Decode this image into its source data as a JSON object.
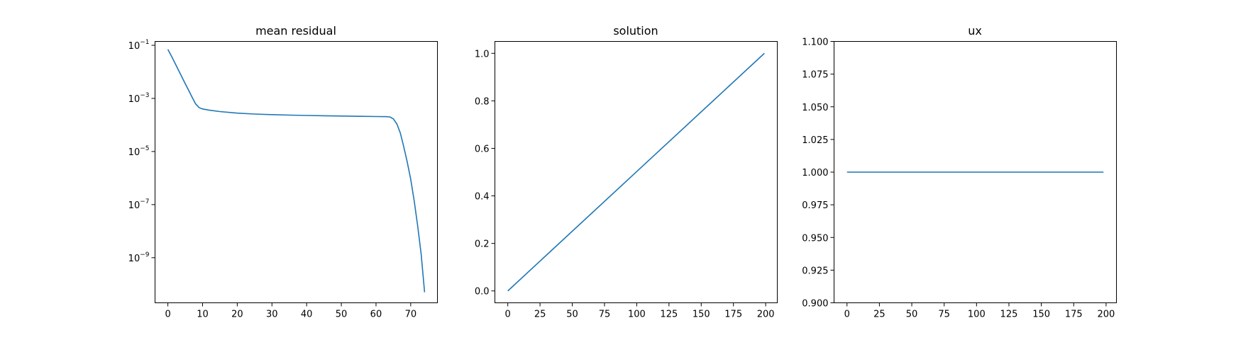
{
  "colors": {
    "series": "#1f77b4",
    "axis": "#000000",
    "background": "#ffffff"
  },
  "chart_data": [
    {
      "type": "line",
      "title": "mean residual",
      "xlabel": "",
      "ylabel": "",
      "yscale": "log",
      "grid": false,
      "xlim": [
        -3.7,
        77.7
      ],
      "ylim": [
        2e-11,
        0.14
      ],
      "xticks": [
        0,
        10,
        20,
        30,
        40,
        50,
        60,
        70
      ],
      "xtick_labels": [
        "0",
        "10",
        "20",
        "30",
        "40",
        "50",
        "60",
        "70"
      ],
      "yticks": [
        0.1,
        0.001,
        1e-05,
        1e-07,
        1e-09
      ],
      "ytick_labels": [
        {
          "base": "10",
          "exp": "−1"
        },
        {
          "base": "10",
          "exp": "−3"
        },
        {
          "base": "10",
          "exp": "−5"
        },
        {
          "base": "10",
          "exp": "−7"
        },
        {
          "base": "10",
          "exp": "−9"
        }
      ],
      "series": [
        {
          "x": [
            0,
            1,
            2,
            3,
            4,
            5,
            6,
            7,
            8,
            9,
            10,
            12,
            15,
            20,
            25,
            30,
            35,
            40,
            45,
            50,
            55,
            60,
            63,
            64,
            65,
            66,
            67,
            68,
            69,
            70,
            71,
            72,
            73,
            74
          ],
          "y": [
            0.07,
            0.04,
            0.022,
            0.012,
            0.0066,
            0.0036,
            0.002,
            0.0011,
            0.00062,
            0.00045,
            0.0004,
            0.00036,
            0.00032,
            0.00028,
            0.000258,
            0.000245,
            0.000235,
            0.000228,
            0.000222,
            0.000217,
            0.000212,
            0.000208,
            0.000205,
            0.0002,
            0.00017,
            0.00011,
            5e-05,
            1.5e-05,
            4e-06,
            9e-07,
            1.4e-07,
            1.6e-08,
            1.4e-09,
            5e-11
          ]
        }
      ]
    },
    {
      "type": "line",
      "title": "solution",
      "xlabel": "",
      "ylabel": "",
      "grid": false,
      "xlim": [
        -10,
        209
      ],
      "ylim": [
        -0.05,
        1.05
      ],
      "xticks": [
        0,
        25,
        50,
        75,
        100,
        125,
        150,
        175,
        200
      ],
      "xtick_labels": [
        "0",
        "25",
        "50",
        "75",
        "100",
        "125",
        "150",
        "175",
        "200"
      ],
      "yticks": [
        0,
        0.2,
        0.4,
        0.6,
        0.8,
        1.0
      ],
      "ytick_labels": [
        "0.0",
        "0.2",
        "0.4",
        "0.6",
        "0.8",
        "1.0"
      ],
      "series": [
        {
          "x": [
            0,
            199
          ],
          "y": [
            0.0,
            1.0
          ]
        }
      ]
    },
    {
      "type": "line",
      "title": "ux",
      "xlabel": "",
      "ylabel": "",
      "grid": false,
      "xlim": [
        -10,
        208
      ],
      "ylim": [
        0.9,
        1.1
      ],
      "xticks": [
        0,
        25,
        50,
        75,
        100,
        125,
        150,
        175,
        200
      ],
      "xtick_labels": [
        "0",
        "25",
        "50",
        "75",
        "100",
        "125",
        "150",
        "175",
        "200"
      ],
      "yticks": [
        0.9,
        0.925,
        0.95,
        0.975,
        1.0,
        1.025,
        1.05,
        1.075,
        1.1
      ],
      "ytick_labels": [
        "0.900",
        "0.925",
        "0.950",
        "0.975",
        "1.000",
        "1.025",
        "1.050",
        "1.075",
        "1.100"
      ],
      "series": [
        {
          "x": [
            0,
            198
          ],
          "y": [
            1.0,
            1.0
          ]
        }
      ]
    }
  ]
}
